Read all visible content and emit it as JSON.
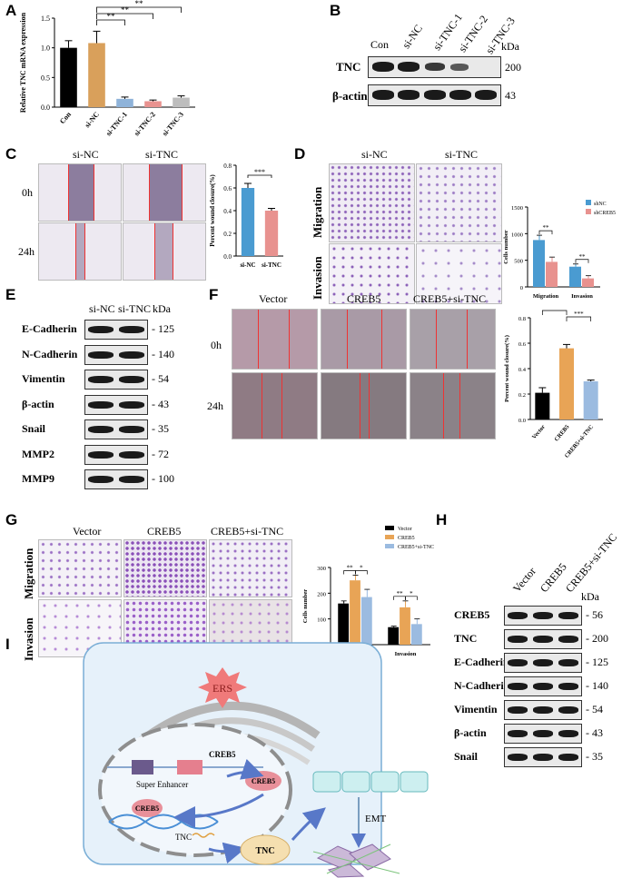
{
  "panel_labels": {
    "A": "A",
    "B": "B",
    "C": "C",
    "D": "D",
    "E": "E",
    "F": "F",
    "G": "G",
    "H": "H",
    "I": "I"
  },
  "panelA": {
    "chart_data": {
      "type": "bar",
      "ylabel": "Relative TNC mRNA expression",
      "categories": [
        "Con",
        "si-NC",
        "si-TNC-1",
        "si-TNC-2",
        "si-TNC-3"
      ],
      "values": [
        1.0,
        1.08,
        0.14,
        0.1,
        0.16
      ],
      "errors": [
        0.12,
        0.2,
        0.03,
        0.02,
        0.03
      ],
      "ylim": [
        0,
        1.5
      ],
      "yticks": [
        "0.0",
        "0.5",
        "1.0",
        "1.5"
      ],
      "colors": [
        "#000000",
        "#d9a05b",
        "#8fb3d9",
        "#e8928f",
        "#bdbdbd"
      ],
      "significance": [
        "**",
        "**",
        "**"
      ]
    }
  },
  "panelB": {
    "lanes": [
      "Con",
      "si-NC",
      "si-TNC-1",
      "si-TNC-2",
      "si-TNC-3"
    ],
    "kda": "kDa",
    "rows": [
      {
        "label": "TNC",
        "size": "200"
      },
      {
        "label": "β-actin",
        "size": "43"
      }
    ]
  },
  "panelC": {
    "columns": [
      "si-NC",
      "si-TNC"
    ],
    "rows": [
      "0h",
      "24h"
    ],
    "chart_data": {
      "type": "bar",
      "ylabel": "Percent wound closure(%)",
      "categories": [
        "si-NC",
        "si-TNC"
      ],
      "values": [
        0.6,
        0.4
      ],
      "errors": [
        0.04,
        0.02
      ],
      "ylim": [
        0,
        0.8
      ],
      "yticks": [
        "0.0",
        "0.2",
        "0.4",
        "0.6",
        "0.8"
      ],
      "colors": [
        "#4a9bd1",
        "#e8928f"
      ],
      "significance": [
        "***"
      ]
    }
  },
  "panelD": {
    "columns": [
      "si-NC",
      "si-TNC"
    ],
    "rows": [
      "Migration",
      "Invasion"
    ],
    "chart_data": {
      "type": "bar",
      "ylabel": "Cells number",
      "categories": [
        "Migration",
        "Invasion"
      ],
      "series": [
        {
          "name": "shNC",
          "values": [
            880,
            380
          ],
          "errors": [
            90,
            50
          ],
          "color": "#4a9bd1"
        },
        {
          "name": "shCREB5",
          "values": [
            470,
            160
          ],
          "errors": [
            90,
            50
          ],
          "color": "#e8928f"
        }
      ],
      "ylim": [
        0,
        1500
      ],
      "yticks": [
        "0",
        "500",
        "1000",
        "1500"
      ],
      "significance": [
        "**",
        "**"
      ]
    }
  },
  "panelE": {
    "lanes": [
      "si-NC",
      "si-TNC"
    ],
    "kda": "kDa",
    "rows": [
      {
        "label": "E-Cadherin",
        "size": "125"
      },
      {
        "label": "N-Cadherin",
        "size": "140"
      },
      {
        "label": "Vimentin",
        "size": "54"
      },
      {
        "label": "β-actin",
        "size": "43"
      },
      {
        "label": "Snail",
        "size": "35"
      },
      {
        "label": "MMP2",
        "size": "72"
      },
      {
        "label": "MMP9",
        "size": "100"
      }
    ]
  },
  "panelF": {
    "columns": [
      "Vector",
      "CREB5",
      "CREB5+si-TNC"
    ],
    "rows": [
      "0h",
      "24h"
    ],
    "chart_data": {
      "type": "bar",
      "ylabel": "Percent wound closure(%)",
      "categories": [
        "Vector",
        "CREB5",
        "CREB5+si-TNC"
      ],
      "values": [
        0.21,
        0.56,
        0.3
      ],
      "errors": [
        0.04,
        0.03,
        0.01
      ],
      "ylim": [
        0,
        0.8
      ],
      "yticks": [
        "0.0",
        "0.2",
        "0.4",
        "0.6",
        "0.8"
      ],
      "colors": [
        "#000000",
        "#e8a456",
        "#9bbbe0"
      ],
      "significance": [
        "***",
        "***"
      ]
    }
  },
  "panelG": {
    "columns": [
      "Vector",
      "CREB5",
      "CREB5+si-TNC"
    ],
    "rows": [
      "Migration",
      "Invasion"
    ],
    "chart_data": {
      "type": "bar",
      "ylabel": "Cells number",
      "categories": [
        "Migration",
        "Invasion"
      ],
      "series": [
        {
          "name": "Vector",
          "values": [
            160,
            68
          ],
          "errors": [
            10,
            4
          ],
          "color": "#000000"
        },
        {
          "name": "CREB5",
          "values": [
            250,
            145
          ],
          "errors": [
            20,
            25
          ],
          "color": "#e8a456"
        },
        {
          "name": "CREB5+si-TNC",
          "values": [
            185,
            80
          ],
          "errors": [
            30,
            20
          ],
          "color": "#9bbbe0"
        }
      ],
      "ylim": [
        0,
        300
      ],
      "yticks": [
        "0",
        "100",
        "200",
        "300"
      ],
      "significance": [
        "**",
        "*",
        "**",
        "*"
      ]
    }
  },
  "panelH": {
    "lanes": [
      "Vector",
      "CREB5",
      "CREB5+si-TNC"
    ],
    "kda": "kDa",
    "rows": [
      {
        "label": "CREB5",
        "size": "56"
      },
      {
        "label": "TNC",
        "size": "200"
      },
      {
        "label": "E-Cadherin",
        "size": "125"
      },
      {
        "label": "N-Cadherin",
        "size": "140"
      },
      {
        "label": "Vimentin",
        "size": "54"
      },
      {
        "label": "β-actin",
        "size": "43"
      },
      {
        "label": "Snail",
        "size": "35"
      }
    ]
  },
  "panelI": {
    "ers": "ERS",
    "creb5_gene": "CREB5",
    "super_enhancer": "Super Enhancer",
    "creb5_protein": "CREB5",
    "creb5_bound": "CREB5",
    "tnc_gene": "TNC",
    "tnc_protein": "TNC",
    "emt": "EMT"
  }
}
